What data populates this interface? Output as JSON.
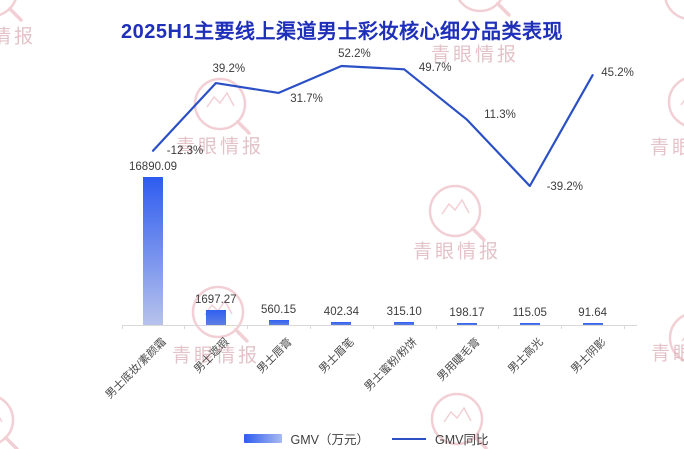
{
  "title": "2025H1主要线上渠道男士彩妆核心细分品类表现",
  "legend": {
    "gmv_label": "GMV（万元）",
    "yoy_label": "GMV同比"
  },
  "watermark": {
    "brand": "青眼情报"
  },
  "colors": {
    "title": "#1e2fba",
    "bar_gradient_top": "#2e5cf0",
    "bar_gradient_bottom": "#b7c2ec",
    "line": "#2b50c6",
    "axis": "#d9d9d9",
    "watermark_pink": "#e8a9b2"
  },
  "chart_data": {
    "type": "bar",
    "title": "2025H1主要线上渠道男士彩妆核心细分品类表现",
    "categories": [
      "男士底妆/素颜霜",
      "男士遮瑕",
      "男士唇膏",
      "男士眉笔",
      "男士蜜粉/粉饼",
      "男用睫毛膏",
      "男士高光",
      "男士阴影"
    ],
    "series": [
      {
        "name": "GMV（万元）",
        "type": "bar",
        "unit": "万元",
        "values": [
          16890.09,
          1697.27,
          560.15,
          402.34,
          315.1,
          198.17,
          115.05,
          91.64
        ],
        "value_labels": [
          "16890.09",
          "1697.27",
          "560.15",
          "402.34",
          "315.10",
          "198.17",
          "115.05",
          "91.64"
        ]
      },
      {
        "name": "GMV同比",
        "type": "line",
        "unit": "%",
        "values": [
          -12.3,
          39.2,
          31.7,
          52.2,
          49.7,
          11.3,
          -39.2,
          45.2
        ],
        "value_labels": [
          "-12.3%",
          "39.2%",
          "31.7%",
          "52.2%",
          "49.7%",
          "11.3%",
          "-39.2%",
          "45.2%"
        ]
      }
    ],
    "ylim_bar": [
      0,
      16890.09
    ],
    "ylim_line_pct": [
      -39.2,
      52.2
    ],
    "grid": false,
    "legend_position": "bottom"
  }
}
